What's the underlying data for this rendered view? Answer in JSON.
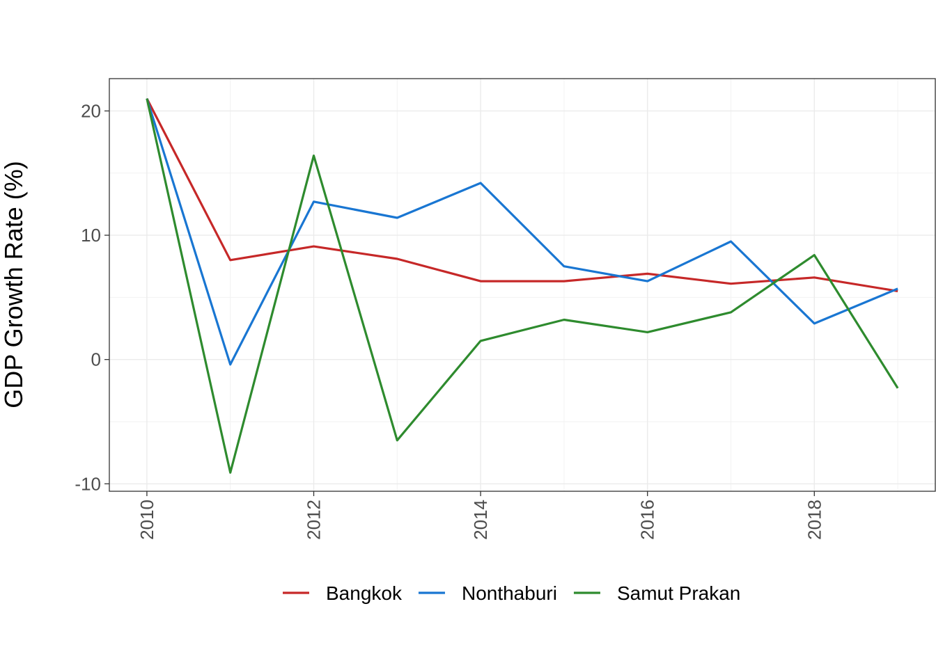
{
  "chart_data": {
    "type": "line",
    "title": "",
    "xlabel": "",
    "ylabel": "GDP Growth Rate (%)",
    "x": [
      2010,
      2011,
      2012,
      2013,
      2014,
      2015,
      2016,
      2017,
      2018,
      2019
    ],
    "xlim": [
      2009.55,
      2019.45
    ],
    "ylim": [
      -10.6,
      22.6
    ],
    "x_ticks": [
      2010,
      2012,
      2014,
      2016,
      2018
    ],
    "x_tick_labels": [
      "2010",
      "2012",
      "2014",
      "2016",
      "2018"
    ],
    "y_ticks": [
      -10,
      0,
      10,
      20
    ],
    "y_tick_labels": [
      "-10",
      "0",
      "10",
      "20"
    ],
    "grid": true,
    "legend_position": "bottom",
    "series": [
      {
        "name": "Bangkok",
        "color": "#c62828",
        "values": [
          21.0,
          8.0,
          9.1,
          8.1,
          6.3,
          6.3,
          6.9,
          6.1,
          6.6,
          5.5
        ]
      },
      {
        "name": "Nonthaburi",
        "color": "#1976d2",
        "values": [
          21.0,
          -0.4,
          12.7,
          11.4,
          14.2,
          7.5,
          6.3,
          9.5,
          2.9,
          5.7
        ]
      },
      {
        "name": "Samut Prakan",
        "color": "#2e8b2e",
        "values": [
          21.0,
          -9.1,
          16.4,
          -6.5,
          1.5,
          3.2,
          2.2,
          3.8,
          8.4,
          -2.3
        ]
      }
    ]
  }
}
